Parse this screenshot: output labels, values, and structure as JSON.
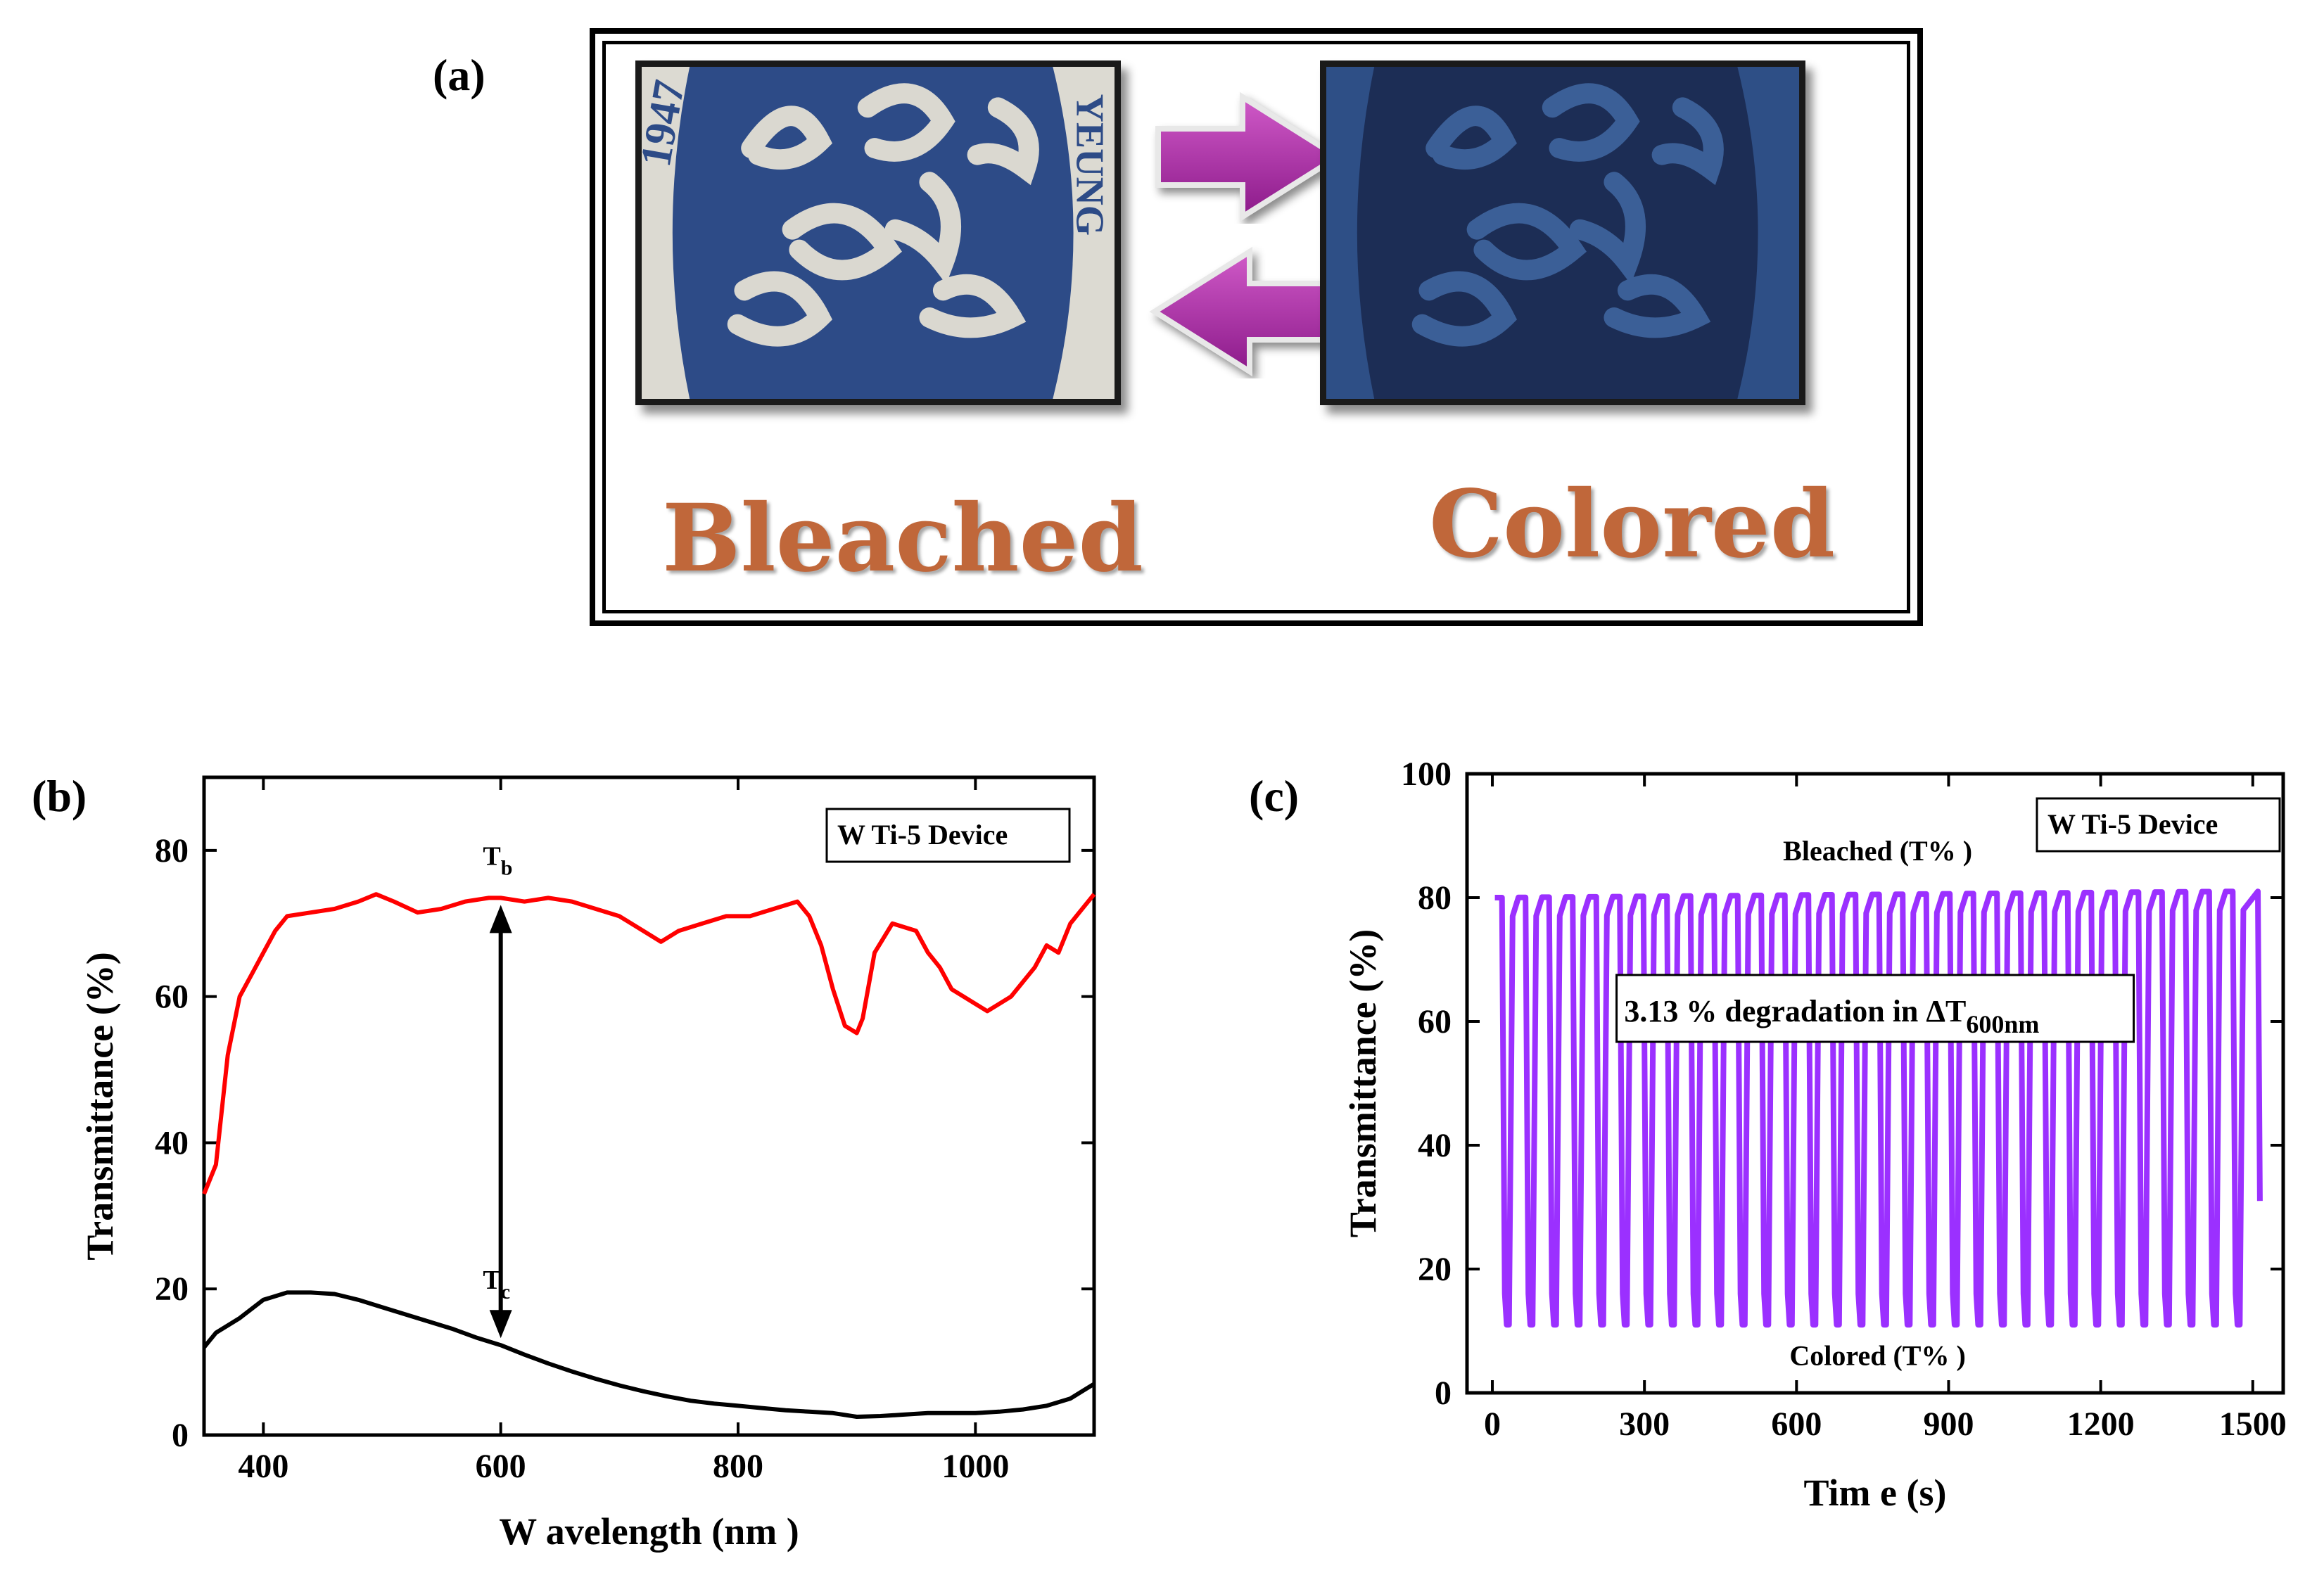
{
  "panels": {
    "a": {
      "label": "(a)",
      "bleached_caption": "Bleached",
      "colored_caption": "Colored",
      "photo_text": "YEUNG",
      "photo_year": "1947",
      "arrow_icon": "magenta-arrow-icon",
      "colors": {
        "arrow": "#a0229e",
        "caption": "#c0673a",
        "bleached_film": "#2c4a85",
        "colored_film": "#1b2c52"
      }
    },
    "b": {
      "label": "(b)",
      "legend": "W Ti-5 Device",
      "tb_label": "T",
      "tb_sub": "b",
      "tc_label": "T",
      "tc_sub": "c"
    },
    "c": {
      "label": "(c)",
      "legend": "W Ti-5 Device",
      "bleached_annotation": "Bleached (T% )",
      "colored_annotation": "Colored (T% )",
      "degradation_text": "3.13 % degradation in ΔT",
      "degradation_sub": "600nm"
    }
  },
  "chart_data": [
    {
      "type": "line",
      "title": "",
      "xlabel": "W avelength (nm )",
      "ylabel": "Transmittance (%)",
      "xlim": [
        350,
        1100
      ],
      "ylim": [
        0,
        90
      ],
      "xticks": [
        400,
        600,
        800,
        1000
      ],
      "yticks": [
        0,
        20,
        40,
        60,
        80
      ],
      "grid": false,
      "legend_position": "top-right",
      "series": [
        {
          "name": "",
          "color": "#ff0000",
          "x": [
            350,
            360,
            370,
            380,
            390,
            400,
            410,
            420,
            440,
            460,
            480,
            495,
            510,
            530,
            550,
            570,
            590,
            600,
            620,
            640,
            660,
            680,
            700,
            720,
            735,
            750,
            770,
            790,
            810,
            830,
            850,
            860,
            870,
            880,
            890,
            900,
            905,
            915,
            930,
            950,
            960,
            970,
            980,
            990,
            1000,
            1010,
            1020,
            1030,
            1040,
            1050,
            1060,
            1070,
            1080,
            1090,
            1100
          ],
          "y": [
            33,
            37,
            52,
            60,
            63,
            66,
            69,
            71,
            71.5,
            72,
            73,
            74,
            73,
            71.5,
            72,
            73,
            73.5,
            73.5,
            73,
            73.5,
            73,
            72,
            71,
            69,
            67.5,
            69,
            70,
            71,
            71,
            72,
            73,
            71,
            67,
            61,
            56,
            55,
            57,
            66,
            70,
            69,
            66,
            64,
            61,
            60,
            59,
            58,
            59,
            60,
            62,
            64,
            67,
            66,
            70,
            72,
            74
          ]
        },
        {
          "name": "",
          "color": "#000000",
          "x": [
            350,
            360,
            380,
            400,
            420,
            440,
            460,
            480,
            500,
            520,
            540,
            560,
            580,
            600,
            620,
            640,
            660,
            680,
            700,
            720,
            740,
            760,
            780,
            800,
            820,
            840,
            860,
            880,
            900,
            920,
            940,
            960,
            980,
            1000,
            1020,
            1040,
            1060,
            1080,
            1090,
            1100
          ],
          "y": [
            12,
            14,
            16,
            18.5,
            19.5,
            19.5,
            19.3,
            18.5,
            17.5,
            16.5,
            15.5,
            14.5,
            13.3,
            12.3,
            11,
            9.8,
            8.7,
            7.7,
            6.8,
            6,
            5.3,
            4.7,
            4.3,
            4,
            3.7,
            3.4,
            3.2,
            3,
            2.5,
            2.6,
            2.8,
            3,
            3,
            3,
            3.2,
            3.5,
            4,
            5,
            6,
            7
          ]
        }
      ]
    },
    {
      "type": "line",
      "title": "",
      "xlabel": "Tim e (s)",
      "ylabel": "Transmittance (%)",
      "xlim": [
        -50,
        1560
      ],
      "ylim": [
        0,
        100
      ],
      "xticks": [
        0,
        300,
        600,
        900,
        1200,
        1500
      ],
      "yticks": [
        0,
        20,
        40,
        60,
        80,
        100
      ],
      "grid": false,
      "legend_position": "top-right",
      "series": [
        {
          "name": "",
          "color": "#9b30ff",
          "cycles": 32,
          "period_s": 46.5,
          "start_s": 5,
          "end_s": 1510,
          "bleached_T_first": 80.0,
          "bleached_T_last": 81.0,
          "colored_T_first": 11.0,
          "colored_T_last": 11.0,
          "final_T": 31
        }
      ]
    }
  ]
}
